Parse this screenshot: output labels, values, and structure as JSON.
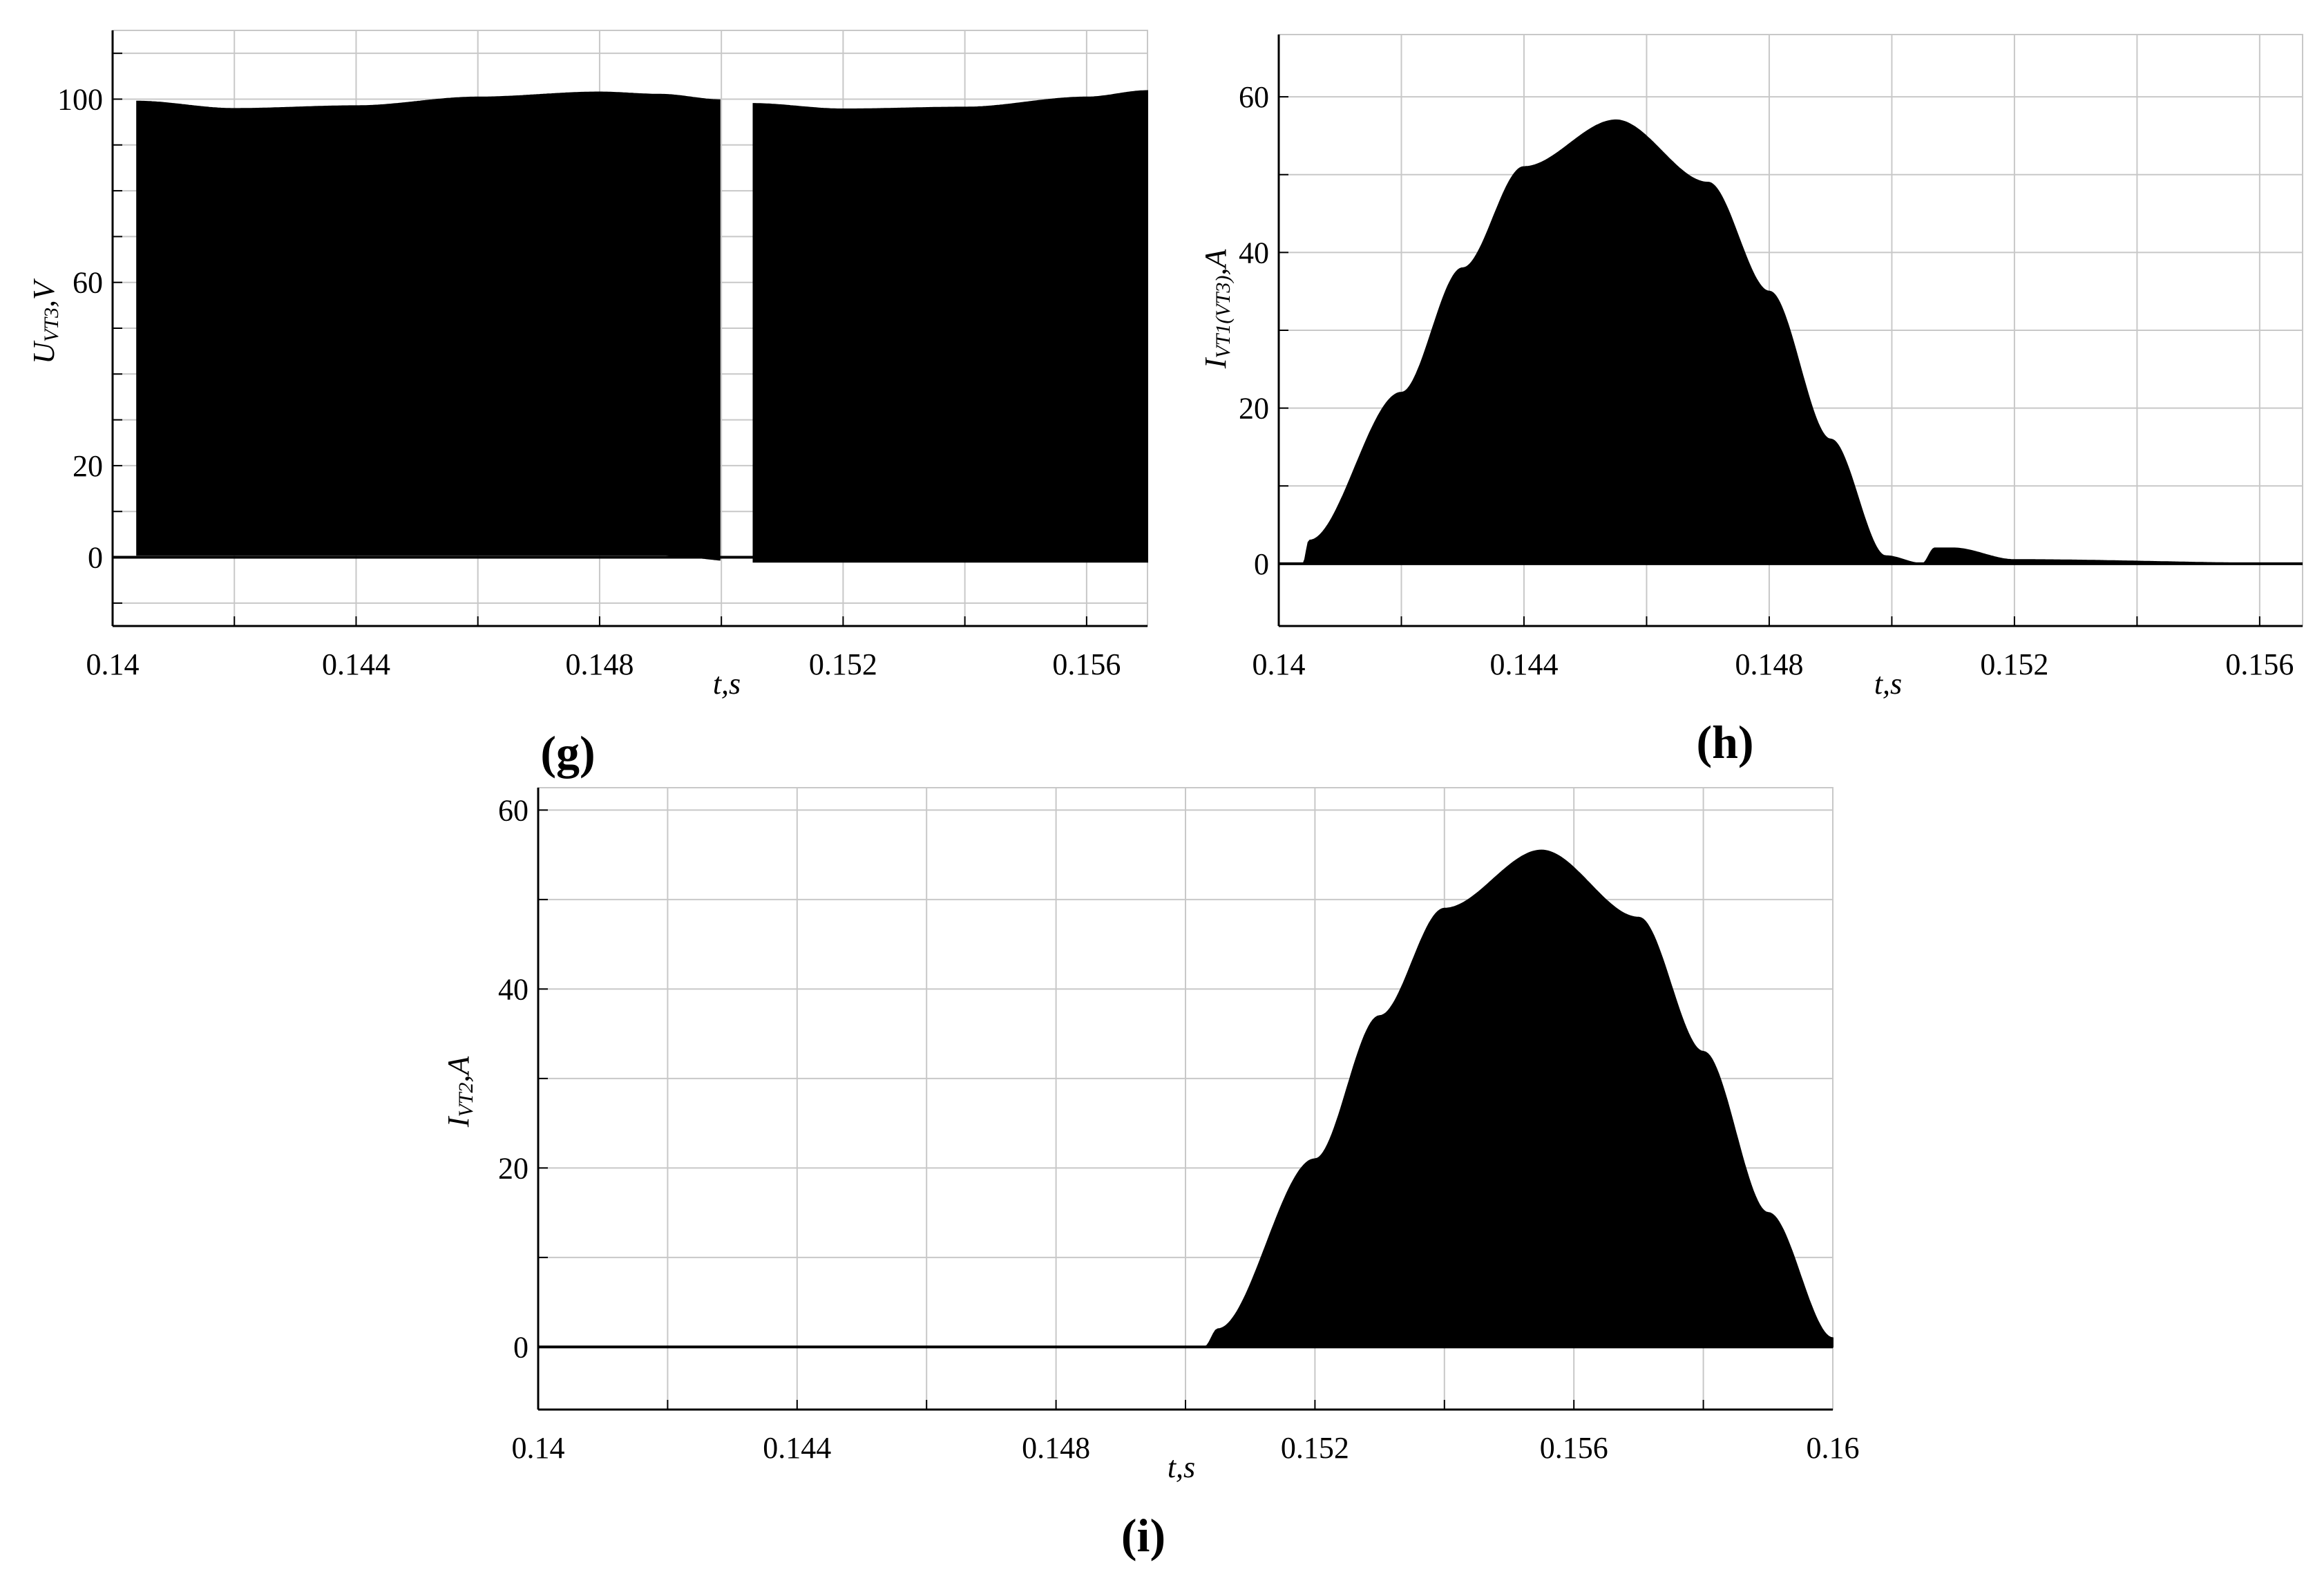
{
  "panels": {
    "g": {
      "label": "(g)",
      "xlabel": "t,s",
      "ylabel_main": "U",
      "ylabel_sub": "VT3",
      "ylabel_unit": ",V"
    },
    "h": {
      "label": "(h)",
      "xlabel": "t,s",
      "ylabel_main": "I",
      "ylabel_sub": "VT1(VT3)",
      "ylabel_unit": ",A"
    },
    "i": {
      "label": "(i)",
      "xlabel": "t,s",
      "ylabel_main": "I",
      "ylabel_sub": "VT2",
      "ylabel_unit": ",A"
    }
  },
  "chart_data": [
    {
      "id": "g",
      "type": "area",
      "title": "",
      "xlabel": "t,s",
      "ylabel": "UVT3,V",
      "xlim": [
        0.14,
        0.157
      ],
      "ylim": [
        -15,
        115
      ],
      "xticks": [
        0.14,
        0.144,
        0.148,
        0.152,
        0.156
      ],
      "xtick_labels": [
        "0.14",
        "0.144",
        "0.148",
        "0.152",
        "0.156"
      ],
      "yticks": [
        0,
        20,
        60,
        100
      ],
      "ytick_labels": [
        "0",
        "20",
        "60",
        "100"
      ],
      "grid": true,
      "series": [
        {
          "envelope_upper": [
            [
              0.1404,
              99.5
            ],
            [
              0.142,
              97.9
            ],
            [
              0.144,
              98.5
            ],
            [
              0.146,
              100.4
            ],
            [
              0.148,
              101.5
            ],
            [
              0.149,
              101.0
            ],
            [
              0.15,
              99.8
            ],
            [
              0.1505,
              99.0
            ],
            [
              0.152,
              97.8
            ],
            [
              0.154,
              98.2
            ],
            [
              0.156,
              100.4
            ],
            [
              0.157,
              101.8
            ]
          ],
          "envelope_lower": [
            [
              0.1404,
              0.5
            ],
            [
              0.149,
              0.5
            ],
            [
              0.1505,
              -1.0
            ],
            [
              0.157,
              -1.0
            ]
          ],
          "gaps": [
            [
              0.14,
              0.1404
            ],
            [
              0.15,
              0.1505
            ]
          ],
          "color": "#000000"
        }
      ]
    },
    {
      "id": "h",
      "type": "area",
      "title": "",
      "xlabel": "t,s",
      "ylabel": "IVT1(VT3),A",
      "xlim": [
        0.14,
        0.1567
      ],
      "ylim": [
        -8,
        68
      ],
      "xticks": [
        0.14,
        0.144,
        0.148,
        0.152,
        0.156
      ],
      "xtick_labels": [
        "0.14",
        "0.144",
        "0.148",
        "0.152",
        "0.156"
      ],
      "yticks": [
        0,
        20,
        40,
        60
      ],
      "ytick_labels": [
        "0",
        "20",
        "40",
        "60"
      ],
      "grid": true,
      "series": [
        {
          "envelope_upper": [
            [
              0.1404,
              0
            ],
            [
              0.1405,
              3
            ],
            [
              0.142,
              22
            ],
            [
              0.143,
              38
            ],
            [
              0.144,
              51
            ],
            [
              0.1455,
              57
            ],
            [
              0.147,
              49
            ],
            [
              0.148,
              35
            ],
            [
              0.149,
              16
            ],
            [
              0.1499,
              1
            ],
            [
              0.1505,
              0
            ],
            [
              0.1507,
              2
            ],
            [
              0.151,
              2
            ],
            [
              0.152,
              0.5
            ],
            [
              0.1567,
              0
            ]
          ],
          "envelope_lower": [
            [
              0.1404,
              0
            ],
            [
              0.1567,
              0
            ]
          ],
          "color": "#000000"
        }
      ]
    },
    {
      "id": "i",
      "type": "area",
      "title": "",
      "xlabel": "t,s",
      "ylabel": "IVT2,A",
      "xlim": [
        0.14,
        0.16
      ],
      "ylim": [
        -7,
        62.5
      ],
      "xticks": [
        0.14,
        0.144,
        0.148,
        0.152,
        0.156,
        0.16
      ],
      "xtick_labels": [
        "0.14",
        "0.144",
        "0.148",
        "0.152",
        "0.156",
        "0.16"
      ],
      "yticks": [
        0,
        20,
        40,
        60
      ],
      "ytick_labels": [
        "0",
        "20",
        "40",
        "60"
      ],
      "grid": true,
      "series": [
        {
          "envelope_upper": [
            [
              0.14,
              0
            ],
            [
              0.1503,
              0
            ],
            [
              0.1505,
              2
            ],
            [
              0.152,
              21
            ],
            [
              0.153,
              37
            ],
            [
              0.154,
              49
            ],
            [
              0.1555,
              55.5
            ],
            [
              0.157,
              48
            ],
            [
              0.158,
              33
            ],
            [
              0.159,
              15
            ],
            [
              0.16,
              1
            ]
          ],
          "envelope_lower": [
            [
              0.14,
              0
            ],
            [
              0.16,
              0
            ]
          ],
          "color": "#000000"
        }
      ]
    }
  ]
}
